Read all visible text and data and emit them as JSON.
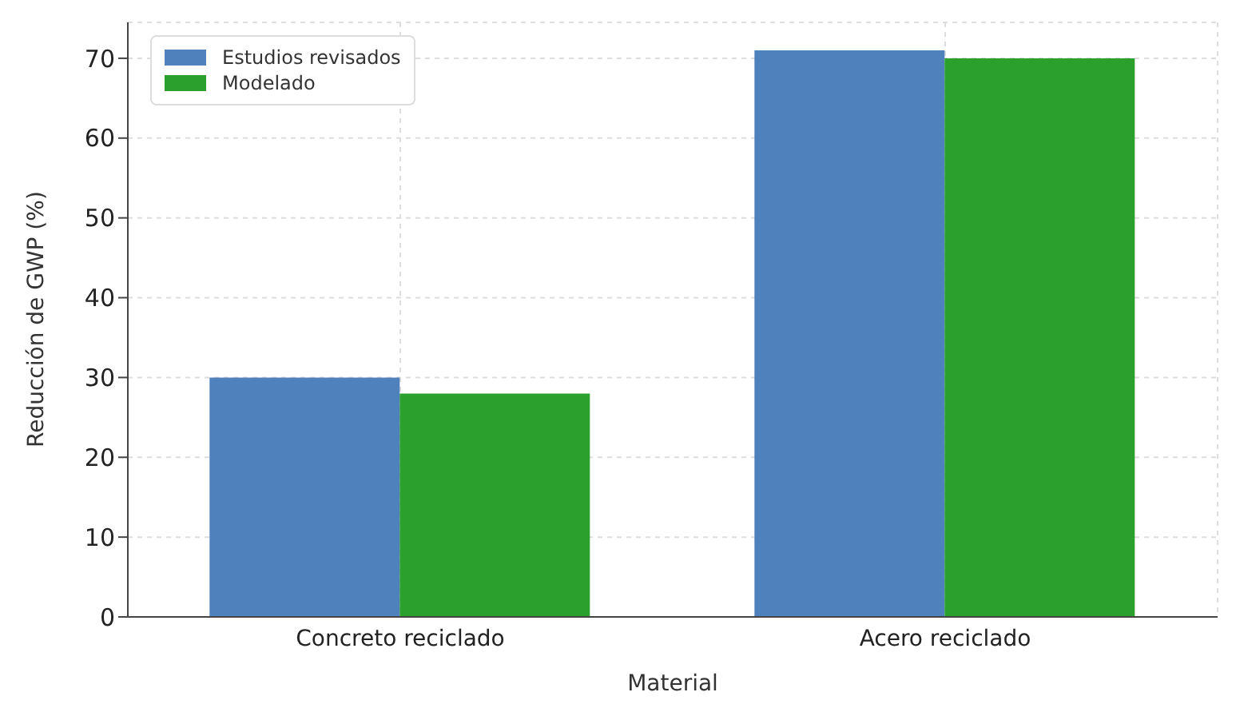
{
  "chart_data": {
    "type": "bar",
    "xlabel": "Material",
    "ylabel": "Reducción de GWP (%)",
    "categories": [
      "Concreto reciclado",
      "Acero reciclado"
    ],
    "series": [
      {
        "name": "Estudios revisados",
        "color": "#4f81bd",
        "values": [
          30,
          71
        ]
      },
      {
        "name": "Modelado",
        "color": "#2ca02c",
        "values": [
          28,
          70
        ]
      }
    ],
    "ylim": [
      0,
      74.5
    ],
    "yticks": [
      0,
      10,
      20,
      30,
      40,
      50,
      60,
      70
    ],
    "grid": true,
    "legend": "top left"
  }
}
